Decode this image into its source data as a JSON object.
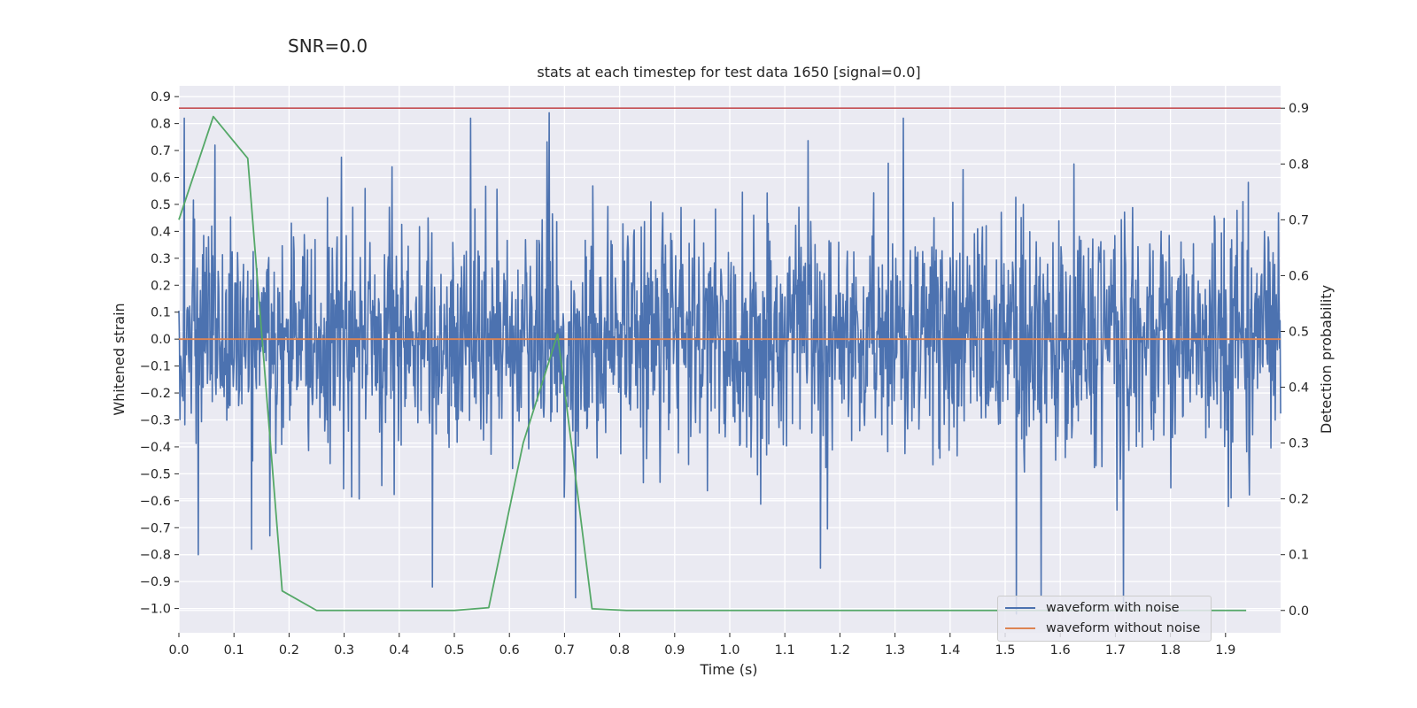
{
  "figure": {
    "suptitle": "SNR=0.0"
  },
  "chart_data": {
    "type": "line",
    "title": "stats at each timestep for test data 1650 [signal=0.0]",
    "xlabel": "Time (s)",
    "ylabel": "Whitened strain",
    "y2label": "Detection probability",
    "xlim": [
      0.0,
      2.0
    ],
    "ylim": [
      -1.09,
      0.94
    ],
    "y2lim": [
      -0.04,
      0.94
    ],
    "x_ticks": [
      0.0,
      0.1,
      0.2,
      0.3,
      0.4,
      0.5,
      0.6,
      0.7,
      0.8,
      0.9,
      1.0,
      1.1,
      1.2,
      1.3,
      1.4,
      1.5,
      1.6,
      1.7,
      1.8,
      1.9
    ],
    "x_tick_labels": [
      "0.0",
      "0.1",
      "0.2",
      "0.3",
      "0.4",
      "0.5",
      "0.6",
      "0.7",
      "0.8",
      "0.9",
      "1.0",
      "1.1",
      "1.2",
      "1.3",
      "1.4",
      "1.5",
      "1.6",
      "1.7",
      "1.8",
      "1.9"
    ],
    "y_ticks": [
      0.9,
      0.8,
      0.7,
      0.6,
      0.5,
      0.4,
      0.3,
      0.2,
      0.1,
      0.0,
      -0.1,
      -0.2,
      -0.3,
      -0.4,
      -0.5,
      -0.6,
      -0.7,
      -0.8,
      -0.9,
      -1.0
    ],
    "y_tick_labels": [
      "0.9",
      "0.8",
      "0.7",
      "0.6",
      "0.5",
      "0.4",
      "0.3",
      "0.2",
      "0.1",
      "0.0",
      "−0.1",
      "−0.2",
      "−0.3",
      "−0.4",
      "−0.5",
      "−0.6",
      "−0.7",
      "−0.8",
      "−0.9",
      "−1.0"
    ],
    "y2_ticks": [
      0.9,
      0.8,
      0.7,
      0.6,
      0.5,
      0.4,
      0.3,
      0.2,
      0.1,
      0.0
    ],
    "y2_tick_labels": [
      "0.9",
      "0.8",
      "0.7",
      "0.6",
      "0.5",
      "0.4",
      "0.3",
      "0.2",
      "0.1",
      "0.0"
    ],
    "grid": true,
    "legend_position": "bottom-right",
    "series": [
      {
        "name": "waveform with noise",
        "color": "#4c72b0",
        "axis": "left",
        "description": "dense noise waveform sampled densely across 0.0–2.0 s, amplitude roughly within -0.65..0.65 with occasional spikes",
        "noise_seed": 1650,
        "sample_count": 2048,
        "noise_sigma": 0.22,
        "spikes": [
          {
            "x": 0.01,
            "y": 0.82
          },
          {
            "x": 0.035,
            "y": -0.8
          },
          {
            "x": 0.065,
            "y": 0.72
          },
          {
            "x": 0.132,
            "y": -0.78
          },
          {
            "x": 0.165,
            "y": -0.73
          },
          {
            "x": 0.46,
            "y": -0.92
          },
          {
            "x": 0.53,
            "y": 0.82
          },
          {
            "x": 0.672,
            "y": 0.84
          },
          {
            "x": 0.72,
            "y": -0.96
          },
          {
            "x": 1.165,
            "y": -0.85
          },
          {
            "x": 1.315,
            "y": 0.82
          },
          {
            "x": 1.52,
            "y": -1.02
          },
          {
            "x": 1.565,
            "y": -0.95
          },
          {
            "x": 1.715,
            "y": -0.98
          }
        ]
      },
      {
        "name": "waveform without noise",
        "color": "#dd8452",
        "axis": "left",
        "x": [
          0.0,
          2.0
        ],
        "y": [
          0.0,
          0.0
        ]
      },
      {
        "name": "",
        "color": "#55a868",
        "axis": "right",
        "x": [
          0.0,
          0.0625,
          0.125,
          0.1875,
          0.25,
          0.3125,
          0.375,
          0.4375,
          0.5,
          0.5625,
          0.625,
          0.6875,
          0.75,
          0.8125,
          0.875,
          0.9375,
          1.0,
          1.0625,
          1.125,
          1.1875,
          1.25,
          1.3125,
          1.375,
          1.4375,
          1.5,
          1.5625,
          1.625,
          1.6875,
          1.75,
          1.8125,
          1.875,
          1.9375
        ],
        "y": [
          0.7,
          0.885,
          0.81,
          0.035,
          0.0,
          0.0,
          0.0,
          0.0,
          0.0,
          0.005,
          0.3,
          0.495,
          0.003,
          0.0,
          0.0,
          0.0,
          0.0,
          0.0,
          0.0,
          0.0,
          0.0,
          0.0,
          0.0,
          0.0,
          0.0,
          0.0,
          0.0,
          0.0,
          0.0,
          0.0,
          0.0,
          0.0
        ]
      },
      {
        "name": "",
        "color": "#c44e52",
        "axis": "right",
        "x": [
          0.0,
          2.0
        ],
        "y": [
          0.9,
          0.9
        ]
      }
    ]
  },
  "colors": {
    "axes_bg": "#eaeaf2",
    "grid": "#ffffff",
    "text": "#262626"
  }
}
